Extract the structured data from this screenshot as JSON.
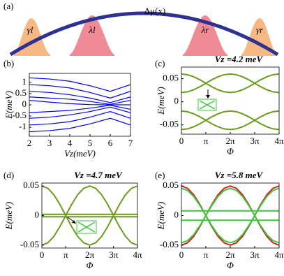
{
  "chart_data": [
    {
      "type": "schematic",
      "panel": "(a)",
      "title": "Δμ(x)",
      "labels": [
        "γl",
        "λl",
        "λr",
        "γr"
      ]
    },
    {
      "type": "line",
      "panel": "(b)",
      "xlabel": "Vz(meV)",
      "ylabel": "E(meV)",
      "x": [
        2,
        3,
        4,
        5,
        6,
        7
      ],
      "xlim": [
        2,
        7
      ],
      "xticks": [
        2,
        3,
        4,
        5,
        6,
        7
      ],
      "ylim": [
        -1.4,
        1.4
      ],
      "yticks": [
        -1,
        -0.5,
        0,
        0.5,
        1
      ],
      "series": [
        {
          "color": "#0000ff",
          "values": [
            1.2,
            1.15,
            1.05,
            0.85,
            0.6,
            0.9
          ]
        },
        {
          "color": "#0000ff",
          "values": [
            0.9,
            0.85,
            0.75,
            0.55,
            0.3,
            0.6
          ]
        },
        {
          "color": "#0000ff",
          "values": [
            0.6,
            0.55,
            0.45,
            0.3,
            0.1,
            0.35
          ]
        },
        {
          "color": "#0000ff",
          "values": [
            0.35,
            0.3,
            0.25,
            0.15,
            0.02,
            0.2
          ]
        },
        {
          "color": "#0000ff",
          "values": [
            0.2,
            0.12,
            0.05,
            0.01,
            0,
            0
          ]
        },
        {
          "color": "#0000ff",
          "values": [
            -0.35,
            -0.3,
            -0.25,
            -0.15,
            -0.02,
            -0.2
          ]
        },
        {
          "color": "#0000ff",
          "values": [
            -0.6,
            -0.55,
            -0.45,
            -0.3,
            -0.1,
            -0.35
          ]
        },
        {
          "color": "#0000ff",
          "values": [
            -0.9,
            -0.85,
            -0.75,
            -0.55,
            -0.3,
            -0.6
          ]
        },
        {
          "color": "#0000ff",
          "values": [
            -1.2,
            -1.15,
            -1.05,
            -0.85,
            -0.6,
            -0.9
          ]
        }
      ]
    },
    {
      "type": "line",
      "panel": "(c)",
      "title": "Vz =4.2 meV",
      "xlabel": "Φ",
      "ylabel": "E(meV)",
      "x": [
        0,
        0.7854,
        1.5708,
        2.3562,
        3.1416,
        3.927,
        4.7124,
        5.4978,
        6.2832,
        7.0686,
        7.854,
        8.6394,
        9.4248,
        10.2102,
        10.9956,
        11.781,
        12.5664
      ],
      "xlim": [
        0,
        12.5664
      ],
      "xticks": [
        0,
        {
          "value": 3.1416,
          "label": "π"
        },
        {
          "value": 6.2832,
          "label": "2π"
        },
        {
          "value": 9.4248,
          "label": "3π"
        },
        {
          "value": 12.5664,
          "label": "4π"
        }
      ],
      "ylim": [
        -0.07,
        0.075
      ],
      "yticks": [
        -0.05,
        0,
        0.05
      ],
      "series": [
        {
          "color": "#6b9b1f",
          "values": [
            0.06,
            0.0585,
            0.0541,
            0.0477,
            0.04,
            0.0323,
            0.0259,
            0.0215,
            0.02,
            0.0215,
            0.0259,
            0.0323,
            0.04,
            0.0477,
            0.0541,
            0.0585,
            0.06
          ]
        },
        {
          "color": "#6b9b1f",
          "values": [
            0.02,
            0.0215,
            0.0259,
            0.0323,
            0.04,
            0.0477,
            0.0541,
            0.0585,
            0.06,
            0.0585,
            0.0541,
            0.0477,
            0.04,
            0.0323,
            0.0259,
            0.0215,
            0.02
          ]
        },
        {
          "color": "#6b9b1f",
          "values": [
            -0.06,
            -0.0585,
            -0.0541,
            -0.0477,
            -0.04,
            -0.0323,
            -0.0259,
            -0.0215,
            -0.02,
            -0.0215,
            -0.0259,
            -0.0323,
            -0.04,
            -0.0477,
            -0.0541,
            -0.0585,
            -0.06
          ]
        },
        {
          "color": "#6b9b1f",
          "values": [
            -0.02,
            -0.0215,
            -0.0259,
            -0.0323,
            -0.04,
            -0.0477,
            -0.0541,
            -0.0585,
            -0.06,
            -0.0585,
            -0.0541,
            -0.0477,
            -0.04,
            -0.0323,
            -0.0259,
            -0.0215,
            -0.02
          ]
        }
      ]
    },
    {
      "type": "line",
      "panel": "(d)",
      "title": "Vz =4.7 meV",
      "xlabel": "Φ",
      "ylabel": "E(meV)",
      "x": [
        0,
        0.7854,
        1.5708,
        2.3562,
        3.1416,
        3.927,
        4.7124,
        5.4978,
        6.2832,
        7.0686,
        7.854,
        8.6394,
        9.4248,
        10.2102,
        10.9956,
        11.781,
        12.5664
      ],
      "xlim": [
        0,
        12.5664
      ],
      "xticks": [
        0,
        {
          "value": 3.1416,
          "label": "π"
        },
        {
          "value": 6.2832,
          "label": "2π"
        },
        {
          "value": 9.4248,
          "label": "3π"
        },
        {
          "value": 12.5664,
          "label": "4π"
        }
      ],
      "ylim": [
        -0.055,
        0.055
      ],
      "yticks": [
        -0.05,
        0,
        0.05
      ],
      "series": [
        {
          "color": "#6b9b1f",
          "values": [
            0.05,
            0.0462,
            0.0354,
            0.0191,
            0,
            -0.0191,
            -0.0354,
            -0.0462,
            -0.05,
            -0.0462,
            -0.0354,
            -0.0191,
            0,
            0.0191,
            0.0354,
            0.0462,
            0.05
          ]
        },
        {
          "color": "#6b9b1f",
          "values": [
            -0.05,
            -0.0462,
            -0.0354,
            -0.0191,
            0,
            0.0191,
            0.0354,
            0.0462,
            0.05,
            0.0462,
            0.0354,
            0.0191,
            0,
            -0.0191,
            -0.0354,
            -0.0462,
            -0.05
          ]
        },
        {
          "color": "#6b9b1f",
          "values": [
            0.002,
            0.002,
            0.002,
            0.002,
            0.002,
            0.002,
            0.002,
            0.002,
            0.002,
            0.002,
            0.002,
            0.002,
            0.002,
            0.002,
            0.002,
            0.002,
            0.002
          ]
        },
        {
          "color": "#6b9b1f",
          "values": [
            -0.002,
            -0.002,
            -0.002,
            -0.002,
            -0.002,
            -0.002,
            -0.002,
            -0.002,
            -0.002,
            -0.002,
            -0.002,
            -0.002,
            -0.002,
            -0.002,
            -0.002,
            -0.002,
            -0.002
          ]
        }
      ]
    },
    {
      "type": "line",
      "panel": "(e)",
      "title": "Vz =5.8 meV",
      "xlabel": "Φ",
      "ylabel": "E(meV)",
      "x": [
        0,
        0.7854,
        1.5708,
        2.3562,
        3.1416,
        3.927,
        4.7124,
        5.4978,
        6.2832,
        7.0686,
        7.854,
        8.6394,
        9.4248,
        10.2102,
        10.9956,
        11.781,
        12.5664
      ],
      "xlim": [
        0,
        12.5664
      ],
      "xticks": [
        0,
        {
          "value": 3.1416,
          "label": "π"
        },
        {
          "value": 6.2832,
          "label": "2π"
        },
        {
          "value": 9.4248,
          "label": "3π"
        },
        {
          "value": 12.5664,
          "label": "4π"
        }
      ],
      "ylim": [
        -0.055,
        0.055
      ],
      "yticks": [
        -0.05,
        0,
        0.05
      ],
      "series": [
        {
          "color": "#d62020",
          "values": [
            0.05,
            0.0462,
            0.0354,
            0.0191,
            0,
            -0.0191,
            -0.0354,
            -0.0462,
            -0.05,
            -0.0462,
            -0.0354,
            -0.0191,
            0,
            0.0191,
            0.0354,
            0.0462,
            0.05
          ]
        },
        {
          "color": "#d62020",
          "values": [
            -0.05,
            -0.0462,
            -0.0354,
            -0.0191,
            0,
            0.0191,
            0.0354,
            0.0462,
            0.05,
            0.0462,
            0.0354,
            0.0191,
            0,
            -0.0191,
            -0.0354,
            -0.0462,
            -0.05
          ]
        },
        {
          "color": "#3cc83c",
          "values": [
            0.046,
            0.0425,
            0.0325,
            0.0176,
            0,
            -0.0176,
            -0.0325,
            -0.0425,
            -0.046,
            -0.0425,
            -0.0325,
            -0.0176,
            0,
            0.0176,
            0.0325,
            0.0425,
            0.046
          ]
        },
        {
          "color": "#3cc83c",
          "values": [
            -0.046,
            -0.0425,
            -0.0325,
            -0.0176,
            0,
            0.0176,
            0.0325,
            0.0425,
            0.046,
            0.0425,
            0.0325,
            0.0176,
            0,
            -0.0176,
            -0.0325,
            -0.0425,
            -0.046
          ]
        },
        {
          "color": "#3cc83c",
          "values": [
            0.008,
            0.008,
            0.008,
            0.008,
            0.008,
            0.008,
            0.008,
            0.008,
            0.008,
            0.008,
            0.008,
            0.008,
            0.008,
            0.008,
            0.008,
            0.008,
            0.008
          ]
        },
        {
          "color": "#3cc83c",
          "values": [
            -0.008,
            -0.008,
            -0.008,
            -0.008,
            -0.008,
            -0.008,
            -0.008,
            -0.008,
            -0.008,
            -0.008,
            -0.008,
            -0.008,
            -0.008,
            -0.008,
            -0.008,
            -0.008,
            -0.008
          ]
        }
      ]
    }
  ]
}
